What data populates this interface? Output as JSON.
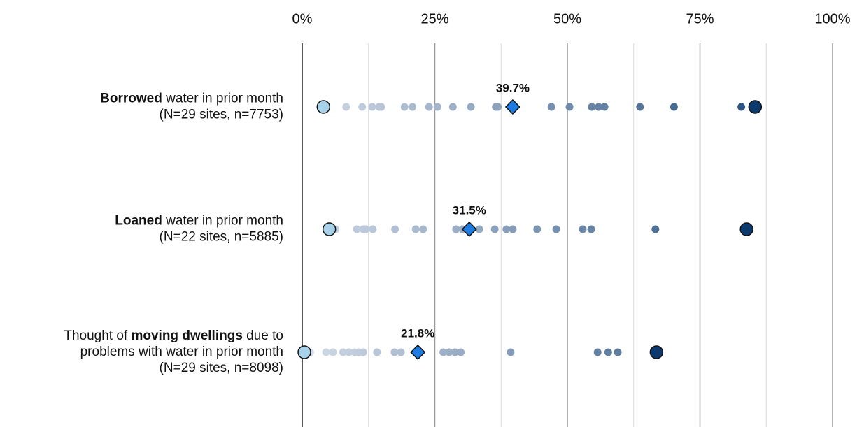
{
  "chart_data": {
    "type": "dot",
    "xlim": [
      0,
      100
    ],
    "xticks": [
      {
        "value": 0,
        "label": "0%"
      },
      {
        "value": 25,
        "label": "25%"
      },
      {
        "value": 50,
        "label": "50%"
      },
      {
        "value": 75,
        "label": "75%"
      },
      {
        "value": 100,
        "label": "100%"
      }
    ],
    "minor_xticks": [
      12.5,
      37.5,
      62.5,
      87.5
    ],
    "grid": true,
    "color_scale": [
      "#d5dde9",
      "#0c3a6e"
    ],
    "min_color": "#a8d2ea",
    "max_color": "#0c3a6e",
    "mean_color": "#1e7be0",
    "rows": [
      {
        "label": [
          [
            {
              "text": "Borrowed",
              "bold": true
            },
            {
              "text": " water in prior month"
            }
          ],
          [
            {
              "text": "(N=29 sites, n=7753)"
            }
          ]
        ],
        "values": [
          8.3,
          11.3,
          13.2,
          14.5,
          14.9,
          19.3,
          20.8,
          23.9,
          25.5,
          28.4,
          31.8,
          36.5,
          36.9,
          47.0,
          50.4,
          54.6,
          55.9,
          57.0,
          63.7,
          70.1,
          82.8
        ],
        "min": 4.0,
        "max": 85.4,
        "mean": 39.7,
        "mean_label": "39.7%"
      },
      {
        "label": [
          [
            {
              "text": "Loaned",
              "bold": true
            },
            {
              "text": " water in prior month"
            }
          ],
          [
            {
              "text": "(N=22 sites, n=5885)"
            }
          ]
        ],
        "values": [
          6.3,
          10.3,
          11.5,
          12.0,
          13.3,
          17.5,
          21.4,
          22.8,
          29.0,
          30.2,
          33.4,
          36.3,
          38.5,
          39.7,
          44.3,
          47.9,
          52.9,
          54.5,
          66.6
        ],
        "min": 5.1,
        "max": 83.8,
        "mean": 31.5,
        "mean_label": "31.5%"
      },
      {
        "label": [
          [
            {
              "text": "Thought of "
            },
            {
              "text": "moving dwellings",
              "bold": true
            },
            {
              "text": " due to"
            }
          ],
          [
            {
              "text": "problems with water in prior month"
            }
          ],
          [
            {
              "text": "(N=29 sites, n=8098)"
            }
          ]
        ],
        "values": [
          1.5,
          4.5,
          5.8,
          7.7,
          8.8,
          9.9,
          10.7,
          11.5,
          14.1,
          17.4,
          18.6,
          26.6,
          27.7,
          28.8,
          29.9,
          39.3,
          55.7,
          57.7,
          59.5
        ],
        "min": 0.4,
        "max": 66.8,
        "mean": 21.8,
        "mean_label": "21.8%"
      }
    ]
  }
}
